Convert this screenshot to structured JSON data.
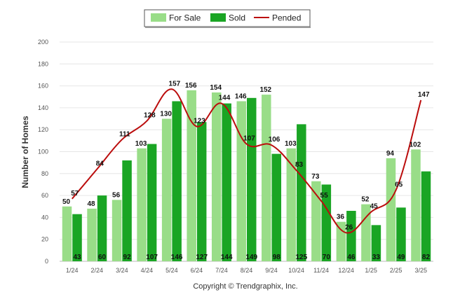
{
  "chart_data": {
    "type": "bar",
    "title": "",
    "xlabel": "",
    "ylabel": "Number of Homes",
    "ylim": [
      0,
      200
    ],
    "yticks": [
      0,
      20,
      40,
      60,
      80,
      100,
      120,
      140,
      160,
      180,
      200
    ],
    "grid": true,
    "legend_position": "top-center",
    "categories": [
      "1/24",
      "2/24",
      "3/24",
      "4/24",
      "5/24",
      "6/24",
      "7/24",
      "8/24",
      "9/24",
      "10/24",
      "11/24",
      "12/24",
      "1/25",
      "2/25",
      "3/25"
    ],
    "series": [
      {
        "name": "For Sale",
        "type": "bar",
        "color": "#99dd88",
        "values": [
          50,
          48,
          56,
          103,
          130,
          156,
          154,
          146,
          152,
          103,
          73,
          36,
          52,
          94,
          102
        ]
      },
      {
        "name": "Sold",
        "type": "bar",
        "color": "#1aa524",
        "values": [
          43,
          60,
          92,
          107,
          146,
          127,
          144,
          149,
          98,
          125,
          70,
          46,
          33,
          49,
          82
        ]
      },
      {
        "name": "Pended",
        "type": "line",
        "color": "#bb0d0d",
        "values": [
          57,
          84,
          111,
          128,
          157,
          123,
          144,
          107,
          106,
          83,
          55,
          26,
          45,
          65,
          147
        ]
      }
    ]
  },
  "footer": {
    "copyright": "Copyright © Trendgraphix, Inc."
  }
}
